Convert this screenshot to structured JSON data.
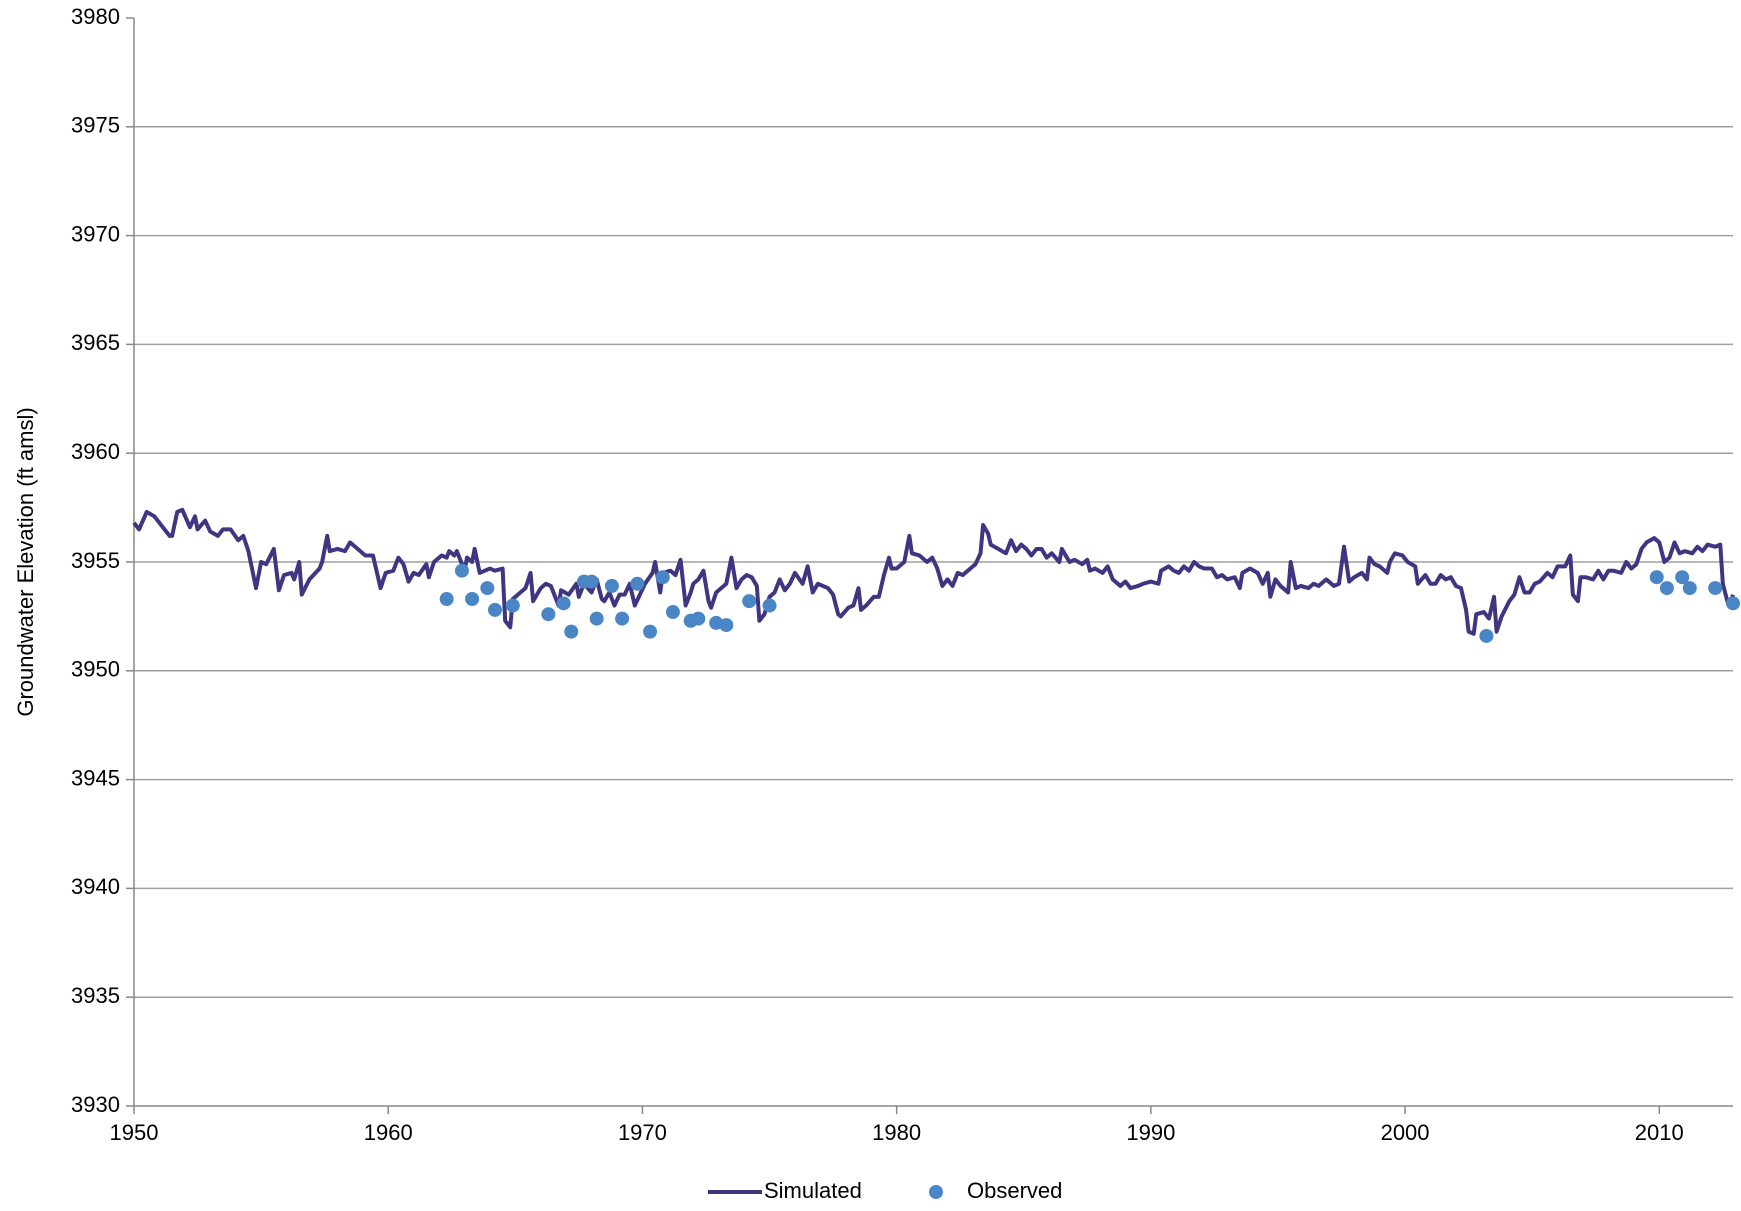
{
  "chart_data": {
    "type": "line",
    "y_label": "Groundwater Elevation (ft amsl)",
    "xlim": [
      1950,
      2012.9
    ],
    "xticks": [
      1950,
      1960,
      1970,
      1980,
      1990,
      2000,
      2010
    ],
    "ylim": [
      3930,
      3980
    ],
    "yticks": [
      3930,
      3935,
      3940,
      3945,
      3950,
      3955,
      3960,
      3965,
      3970,
      3975,
      3980
    ],
    "grid": true,
    "legend": "bottom",
    "series": [
      {
        "name": "Simulated",
        "type": "line",
        "color": "#3f3580",
        "x": [
          1950.0,
          1950.2,
          1950.5,
          1950.8,
          1951.2,
          1951.4,
          1951.5,
          1951.7,
          1951.9,
          1952.2,
          1952.4,
          1952.5,
          1952.8,
          1953.0,
          1953.3,
          1953.5,
          1953.8,
          1954.1,
          1954.3,
          1954.5,
          1954.8,
          1955.0,
          1955.2,
          1955.5,
          1955.7,
          1955.9,
          1956.2,
          1956.3,
          1956.5,
          1956.6,
          1956.9,
          1957.3,
          1957.4,
          1957.6,
          1957.7,
          1958.0,
          1958.3,
          1958.5,
          1958.7,
          1959.1,
          1959.4,
          1959.7,
          1959.9,
          1960.2,
          1960.4,
          1960.6,
          1960.8,
          1961.0,
          1961.2,
          1961.5,
          1961.6,
          1961.8,
          1962.1,
          1962.3,
          1962.4,
          1962.6,
          1962.7,
          1963.0,
          1963.1,
          1963.3,
          1963.4,
          1963.6,
          1963.8,
          1964.0,
          1964.2,
          1964.5,
          1964.6,
          1964.8,
          1964.9,
          1965.2,
          1965.4,
          1965.6,
          1965.7,
          1966.0,
          1966.2,
          1966.4,
          1966.7,
          1966.8,
          1967.1,
          1967.4,
          1967.5,
          1967.7,
          1968.0,
          1968.2,
          1968.4,
          1968.5,
          1968.7,
          1968.9,
          1969.1,
          1969.3,
          1969.5,
          1969.7,
          1969.9,
          1970.1,
          1970.4,
          1970.5,
          1970.7,
          1970.8,
          1971.1,
          1971.3,
          1971.5,
          1971.7,
          1971.9,
          1972.0,
          1972.2,
          1972.4,
          1972.6,
          1972.7,
          1972.9,
          1973.1,
          1973.3,
          1973.5,
          1973.7,
          1973.9,
          1974.1,
          1974.3,
          1974.5,
          1974.6,
          1974.8,
          1975.0,
          1975.2,
          1975.4,
          1975.6,
          1975.8,
          1976.0,
          1976.3,
          1976.5,
          1976.7,
          1976.9,
          1977.1,
          1977.3,
          1977.5,
          1977.7,
          1977.8,
          1978.1,
          1978.3,
          1978.5,
          1978.6,
          1978.8,
          1979.1,
          1979.3,
          1979.5,
          1979.7,
          1979.8,
          1980.0,
          1980.3,
          1980.5,
          1980.6,
          1980.9,
          1981.2,
          1981.4,
          1981.6,
          1981.8,
          1982.0,
          1982.2,
          1982.4,
          1982.6,
          1982.9,
          1983.1,
          1983.3,
          1983.4,
          1983.6,
          1983.7,
          1984.0,
          1984.3,
          1984.5,
          1984.7,
          1984.9,
          1985.1,
          1985.3,
          1985.5,
          1985.7,
          1985.9,
          1986.1,
          1986.4,
          1986.5,
          1986.8,
          1987.0,
          1987.3,
          1987.5,
          1987.6,
          1987.8,
          1988.1,
          1988.3,
          1988.5,
          1988.8,
          1989.0,
          1989.2,
          1989.5,
          1989.7,
          1990.0,
          1990.3,
          1990.4,
          1990.7,
          1990.9,
          1991.1,
          1991.3,
          1991.5,
          1991.7,
          1991.9,
          1992.1,
          1992.4,
          1992.6,
          1992.8,
          1993.0,
          1993.3,
          1993.5,
          1993.6,
          1993.9,
          1994.2,
          1994.4,
          1994.6,
          1994.7,
          1994.9,
          1995.1,
          1995.4,
          1995.5,
          1995.7,
          1995.9,
          1996.2,
          1996.4,
          1996.6,
          1996.9,
          1997.2,
          1997.4,
          1997.6,
          1997.8,
          1998.0,
          1998.3,
          1998.5,
          1998.6,
          1998.8,
          1999.0,
          1999.3,
          1999.4,
          1999.6,
          1999.9,
          2000.1,
          2000.4,
          2000.5,
          2000.8,
          2001.0,
          2001.2,
          2001.4,
          2001.6,
          2001.8,
          2002.0,
          2002.2,
          2002.4,
          2002.5,
          2002.7,
          2002.8,
          2003.1,
          2003.3,
          2003.5,
          2003.6,
          2003.8,
          2004.1,
          2004.3,
          2004.5,
          2004.7,
          2004.9,
          2005.1,
          2005.3,
          2005.6,
          2005.8,
          2006.0,
          2006.3,
          2006.5,
          2006.6,
          2006.8,
          2006.9,
          2007.1,
          2007.4,
          2007.6,
          2007.8,
          2008.0,
          2008.2,
          2008.5,
          2008.7,
          2008.9,
          2009.1,
          2009.3,
          2009.5,
          2009.8,
          2010.0,
          2010.2,
          2010.4,
          2010.6,
          2010.8,
          2011.0,
          2011.3,
          2011.5,
          2011.7,
          2011.9,
          2012.2,
          2012.4,
          2012.5,
          2012.7,
          2012.8,
          2012.9
        ],
        "values": [
          3956.8,
          3956.5,
          3957.3,
          3957.1,
          3956.5,
          3956.2,
          3956.2,
          3957.3,
          3957.4,
          3956.6,
          3957.1,
          3956.5,
          3956.9,
          3956.4,
          3956.2,
          3956.5,
          3956.5,
          3956.0,
          3956.2,
          3955.5,
          3953.8,
          3955.0,
          3954.9,
          3955.6,
          3953.7,
          3954.4,
          3954.5,
          3954.2,
          3955.0,
          3953.5,
          3954.2,
          3954.7,
          3955.0,
          3956.2,
          3955.5,
          3955.6,
          3955.5,
          3955.9,
          3955.7,
          3955.3,
          3955.3,
          3953.8,
          3954.5,
          3954.6,
          3955.2,
          3954.9,
          3954.1,
          3954.5,
          3954.4,
          3954.9,
          3954.3,
          3955.0,
          3955.3,
          3955.2,
          3955.5,
          3955.3,
          3955.5,
          3954.6,
          3955.2,
          3955.0,
          3955.6,
          3954.5,
          3954.6,
          3954.7,
          3954.6,
          3954.7,
          3952.3,
          3952.0,
          3953.3,
          3953.6,
          3953.8,
          3954.5,
          3953.2,
          3953.8,
          3954.0,
          3953.9,
          3953.0,
          3953.7,
          3953.5,
          3954.0,
          3953.4,
          3954.0,
          3953.6,
          3954.2,
          3953.3,
          3953.2,
          3953.6,
          3953.0,
          3953.5,
          3953.5,
          3954.0,
          3953.0,
          3953.5,
          3954.0,
          3954.5,
          3955.0,
          3953.6,
          3954.5,
          3954.6,
          3954.4,
          3955.1,
          3953.0,
          3953.6,
          3954.0,
          3954.2,
          3954.6,
          3953.2,
          3952.9,
          3953.6,
          3953.8,
          3954.0,
          3955.2,
          3953.8,
          3954.2,
          3954.4,
          3954.3,
          3953.9,
          3952.3,
          3952.6,
          3953.4,
          3953.6,
          3954.2,
          3953.7,
          3954.0,
          3954.5,
          3954.0,
          3954.8,
          3953.6,
          3954.0,
          3953.9,
          3953.8,
          3953.5,
          3952.6,
          3952.5,
          3952.9,
          3953.0,
          3953.8,
          3952.8,
          3953.0,
          3953.4,
          3953.4,
          3954.4,
          3955.2,
          3954.7,
          3954.7,
          3955.0,
          3956.2,
          3955.4,
          3955.3,
          3955.0,
          3955.2,
          3954.7,
          3953.9,
          3954.2,
          3953.9,
          3954.5,
          3954.4,
          3954.7,
          3954.9,
          3955.4,
          3956.7,
          3956.3,
          3955.8,
          3955.6,
          3955.4,
          3956.0,
          3955.5,
          3955.8,
          3955.6,
          3955.3,
          3955.6,
          3955.6,
          3955.2,
          3955.4,
          3955.0,
          3955.6,
          3955.0,
          3955.1,
          3954.9,
          3955.1,
          3954.6,
          3954.7,
          3954.5,
          3954.8,
          3954.2,
          3953.9,
          3954.1,
          3953.8,
          3953.9,
          3954.0,
          3954.1,
          3954.0,
          3954.6,
          3954.8,
          3954.6,
          3954.5,
          3954.8,
          3954.6,
          3955.0,
          3954.8,
          3954.7,
          3954.7,
          3954.3,
          3954.4,
          3954.2,
          3954.3,
          3953.8,
          3954.5,
          3954.7,
          3954.5,
          3954.0,
          3954.5,
          3953.4,
          3954.2,
          3953.9,
          3953.6,
          3955.0,
          3953.8,
          3953.9,
          3953.8,
          3954.0,
          3953.9,
          3954.2,
          3953.9,
          3954.0,
          3955.7,
          3954.1,
          3954.3,
          3954.5,
          3954.2,
          3955.2,
          3954.9,
          3954.8,
          3954.5,
          3955.0,
          3955.4,
          3955.3,
          3955.0,
          3954.8,
          3954.0,
          3954.4,
          3954.0,
          3954.0,
          3954.4,
          3954.2,
          3954.3,
          3953.9,
          3953.8,
          3952.8,
          3951.8,
          3951.7,
          3952.6,
          3952.7,
          3952.4,
          3953.4,
          3951.8,
          3952.5,
          3953.2,
          3953.5,
          3954.3,
          3953.6,
          3953.6,
          3954.0,
          3954.1,
          3954.5,
          3954.3,
          3954.8,
          3954.8,
          3955.3,
          3953.5,
          3953.2,
          3954.3,
          3954.3,
          3954.2,
          3954.6,
          3954.2,
          3954.6,
          3954.6,
          3954.5,
          3955.0,
          3954.7,
          3954.9,
          3955.6,
          3955.9,
          3956.1,
          3955.9,
          3955.0,
          3955.2,
          3955.9,
          3955.4,
          3955.5,
          3955.4,
          3955.7,
          3955.5,
          3955.8,
          3955.7,
          3955.8,
          3954.0,
          3953.1,
          3953.1,
          3953.5
        ]
      },
      {
        "name": "Observed",
        "type": "scatter",
        "color": "#4a86c5",
        "x": [
          1962.3,
          1962.9,
          1963.3,
          1963.9,
          1964.2,
          1964.9,
          1966.3,
          1966.9,
          1967.2,
          1967.7,
          1968.0,
          1968.2,
          1968.8,
          1969.2,
          1969.8,
          1970.3,
          1970.8,
          1971.2,
          1971.9,
          1972.2,
          1972.9,
          1973.3,
          1974.2,
          1975.0,
          2003.2,
          2009.9,
          2010.3,
          2010.9,
          2011.2,
          2012.2,
          2012.9
        ],
        "values": [
          3953.3,
          3954.6,
          3953.3,
          3953.8,
          3952.8,
          3953.0,
          3952.6,
          3953.1,
          3951.8,
          3954.1,
          3954.1,
          3952.4,
          3953.9,
          3952.4,
          3954.0,
          3951.8,
          3954.3,
          3952.7,
          3952.3,
          3952.4,
          3952.2,
          3952.1,
          3953.2,
          3953.0,
          3951.6,
          3954.3,
          3953.8,
          3954.3,
          3953.8,
          3953.8,
          3953.1
        ]
      }
    ]
  }
}
